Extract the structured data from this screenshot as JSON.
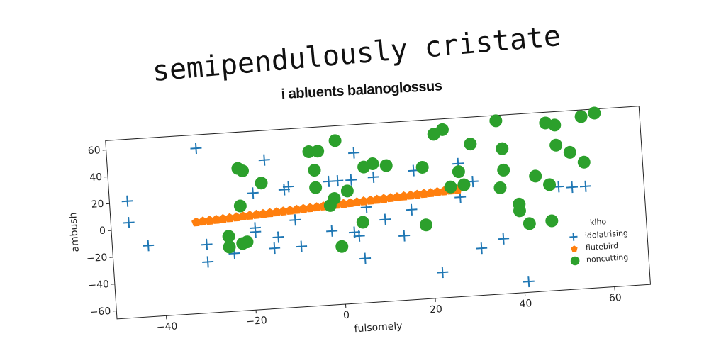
{
  "chart_data": {
    "type": "scatter",
    "title": "semipendulously cristate",
    "subtitle": "i abluents balanoglossus",
    "x_label": "fulsomely",
    "y_label": "ambush",
    "legend_title": "kiho",
    "legend_position": "lower right",
    "xlim": [
      -51,
      68
    ],
    "ylim": [
      -66,
      67
    ],
    "xticks": [
      {
        "value": -40,
        "label": "−40"
      },
      {
        "value": -20,
        "label": "−20"
      },
      0,
      20,
      40,
      60
    ],
    "yticks": [
      {
        "value": -60,
        "label": "−60"
      },
      {
        "value": -40,
        "label": "−40"
      },
      {
        "value": -20,
        "label": "−20"
      },
      0,
      20,
      40,
      60
    ],
    "series": [
      {
        "name": "idolatrising",
        "color": "#1f77b4",
        "marker": "plus",
        "x": [
          -47,
          -47,
          -43,
          -31,
          -30,
          -30,
          -24,
          -16,
          -19,
          -19,
          -19,
          -15,
          -14,
          -12,
          -11,
          -10,
          -9,
          -2,
          -2,
          0,
          4,
          3,
          4,
          5,
          6,
          3,
          8,
          10,
          14,
          16,
          17,
          22,
          27,
          27,
          30,
          31,
          36,
          41,
          49,
          52,
          55
        ],
        "values": [
          21,
          5,
          -13,
          57,
          -15,
          -28,
          -23,
          45,
          21,
          -5,
          -8,
          -21,
          -13,
          22,
          24,
          -1,
          -21,
          -11,
          26,
          26,
          46,
          -13,
          -16,
          -33,
          5,
          26,
          27,
          -5,
          -18,
          1,
          30,
          -47,
          33,
          8,
          19,
          -31,
          -25,
          -58,
          11,
          10,
          10
        ]
      },
      {
        "name": "flutebird",
        "color": "#ff7f0e",
        "marker": "pentagon",
        "x": [
          -32,
          -30.5,
          -29,
          -27.5,
          -26,
          -24.5,
          -23,
          -21.5,
          -20,
          -18.5,
          -17,
          -15.5,
          -14,
          -12.5,
          -11,
          -9.5,
          -8,
          -6.5,
          -5,
          -3.5,
          -2,
          -0.5,
          1,
          2.5,
          4,
          5.5,
          7,
          8.5,
          10,
          11.5,
          13,
          14.5,
          16,
          17.5,
          19,
          20.5,
          22,
          23.5,
          25,
          26.5
        ],
        "values": [
          2,
          2.3,
          2.6,
          2.9,
          3.2,
          3.5,
          3.8,
          4.1,
          4.4,
          4.7,
          5,
          5.3,
          5.6,
          5.9,
          6.2,
          6.5,
          6.8,
          7.1,
          7.4,
          7.7,
          8,
          8.3,
          8.6,
          8.9,
          9.2,
          9.5,
          9.8,
          10.1,
          10.4,
          10.7,
          11,
          11.3,
          11.6,
          11.9,
          12.2,
          12.5,
          12.8,
          13.1,
          13.4,
          13.7
        ]
      },
      {
        "name": "noncutting",
        "color": "#2ca02c",
        "marker": "circle",
        "x": [
          -22,
          -22,
          -21,
          -17,
          -25,
          -25,
          -22,
          -21,
          -6,
          -4,
          -5,
          -5,
          0,
          -2,
          -1,
          2,
          0,
          5,
          6,
          8,
          11,
          19,
          19,
          22,
          24,
          30,
          25,
          27,
          28,
          36,
          37,
          37,
          36,
          40,
          40,
          42,
          44,
          47,
          47,
          47,
          49,
          49,
          52,
          55,
          55,
          58
        ],
        "values": [
          12,
          40,
          38,
          28,
          -10,
          -18,
          -16,
          -15,
          49,
          49,
          35,
          22,
          56,
          8,
          13,
          18,
          -23,
          -6,
          35,
          37,
          35,
          32,
          -11,
          56,
          59,
          47,
          16,
          27,
          17,
          63,
          42,
          26,
          13,
          0,
          -5,
          -15,
          20,
          13,
          -14,
          59,
          57,
          42,
          36,
          28,
          62,
          64
        ]
      }
    ]
  }
}
